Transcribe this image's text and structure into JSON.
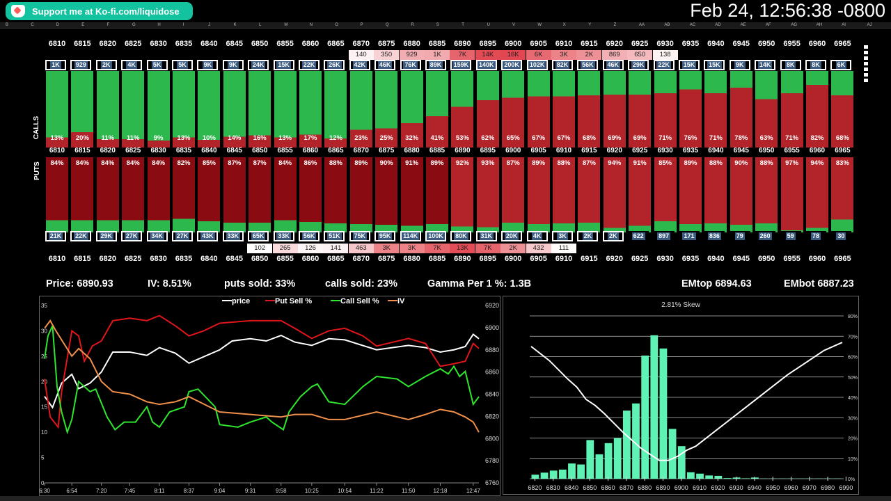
{
  "header": {
    "kofi_label": "Support me at Ko-fi.com/liquidose",
    "clock": "Feb 24, 12:56:38 -0800",
    "columns": [
      "B",
      "C",
      "D",
      "E",
      "F",
      "G",
      "H",
      "I",
      "J",
      "K",
      "L",
      "M",
      "N",
      "O",
      "P",
      "Q",
      "R",
      "S",
      "T",
      "U",
      "V",
      "W",
      "X",
      "Y",
      "Z",
      "AA",
      "AB",
      "AC",
      "AD",
      "AE",
      "AF",
      "AG",
      "AH",
      "AI",
      "AJ"
    ]
  },
  "colors": {
    "green": "#2db84d",
    "red": "#b3232a",
    "darkred": "#8a0c12",
    "oi_fill": "#3a5a80",
    "kofi": "#13c3a0",
    "hist": "#5ef2b4"
  },
  "board": {
    "calls_label": "CALLS",
    "puts_label": "PUTS",
    "strikes": [
      "6810",
      "6815",
      "6820",
      "6825",
      "6830",
      "6835",
      "6840",
      "6845",
      "6850",
      "6855",
      "6860",
      "6865",
      "6870",
      "6875",
      "6880",
      "6885",
      "6890",
      "6895",
      "6900",
      "6905",
      "6910",
      "6915",
      "6920",
      "6925",
      "6930",
      "6935",
      "6940",
      "6945",
      "6950",
      "6955",
      "6960",
      "6965"
    ],
    "call_volume": [
      "",
      "",
      "",
      "",
      "",
      "",
      "",
      "",
      "",
      "",
      "",
      "",
      "140",
      "350",
      "929",
      "1K",
      "7K",
      "14K",
      "16K",
      "6K",
      "3K",
      "2K",
      "869",
      "650",
      "138",
      "",
      "",
      "",
      "",
      "",
      "",
      ""
    ],
    "call_oi": [
      "1K",
      "929",
      "2K",
      "4K",
      "5K",
      "5K",
      "9K",
      "9K",
      "24K",
      "15K",
      "22K",
      "26K",
      "42K",
      "46K",
      "76K",
      "89K",
      "159K",
      "140K",
      "200K",
      "102K",
      "82K",
      "56K",
      "46K",
      "29K",
      "22K",
      "15K",
      "15K",
      "9K",
      "14K",
      "8K",
      "8K",
      "6K"
    ],
    "call_sold_pct": [
      13,
      20,
      11,
      11,
      9,
      13,
      10,
      14,
      16,
      13,
      17,
      12,
      23,
      25,
      32,
      41,
      53,
      62,
      65,
      67,
      67,
      68,
      69,
      69,
      71,
      76,
      71,
      78,
      63,
      71,
      82,
      68
    ],
    "put_sold_pct": [
      84,
      84,
      84,
      84,
      84,
      82,
      85,
      87,
      87,
      84,
      86,
      88,
      89,
      90,
      91,
      89,
      92,
      93,
      87,
      89,
      88,
      87,
      94,
      91,
      85,
      89,
      88,
      90,
      88,
      97,
      94,
      83
    ],
    "put_oi": [
      "21K",
      "22K",
      "29K",
      "27K",
      "34K",
      "27K",
      "43K",
      "33K",
      "65K",
      "33K",
      "56K",
      "51K",
      "75K",
      "95K",
      "114K",
      "100K",
      "80K",
      "31K",
      "20K",
      "4K",
      "3K",
      "2K",
      "2K",
      "622",
      "897",
      "171",
      "836",
      "79",
      "260",
      "59",
      "78",
      "30"
    ],
    "put_volume": [
      "",
      "",
      "",
      "",
      "",
      "",
      "",
      "",
      "102",
      "265",
      "126",
      "141",
      "463",
      "3K",
      "3K",
      "7K",
      "13K",
      "7K",
      "2K",
      "432",
      "111",
      "",
      "",
      "",
      "",
      "",
      "",
      "",
      "",
      "",
      "",
      ""
    ]
  },
  "stats": {
    "price": "Price: 6890.93",
    "iv": "IV: 8.51%",
    "puts_sold": "puts sold: 33%",
    "calls_sold": "calls sold: 23%",
    "gamma": "Gamma Per 1 %: 1.3B",
    "emtop": "EMtop 6894.63",
    "embot": "EMbot 6887.23"
  },
  "chart_data": [
    {
      "type": "line",
      "title": "",
      "legend_placement": "top",
      "x_ticks": [
        "6:30",
        "6:54",
        "7:20",
        "7:45",
        "8:11",
        "8:37",
        "9:04",
        "9:31",
        "9:58",
        "10:25",
        "10:54",
        "11:22",
        "11:50",
        "12:18",
        "12:47"
      ],
      "y_left": {
        "range": [
          0,
          35
        ],
        "ticks": [
          0,
          5,
          10,
          15,
          20,
          25,
          30,
          35
        ]
      },
      "y_right": {
        "range": [
          6760,
          6920
        ],
        "ticks": [
          6760,
          6780,
          6800,
          6820,
          6840,
          6860,
          6880,
          6900,
          6920
        ]
      },
      "series": [
        {
          "name": "price",
          "color": "#ffffff",
          "axis": "right",
          "points": [
            [
              "6:30",
              6838
            ],
            [
              "6:37",
              6828
            ],
            [
              "6:45",
              6850
            ],
            [
              "6:54",
              6858
            ],
            [
              "7:00",
              6845
            ],
            [
              "7:10",
              6850
            ],
            [
              "7:20",
              6860
            ],
            [
              "7:30",
              6878
            ],
            [
              "7:45",
              6878
            ],
            [
              "8:00",
              6875
            ],
            [
              "8:11",
              6882
            ],
            [
              "8:25",
              6877
            ],
            [
              "8:37",
              6868
            ],
            [
              "9:04",
              6880
            ],
            [
              "9:15",
              6888
            ],
            [
              "9:31",
              6890
            ],
            [
              "9:45",
              6888
            ],
            [
              "9:58",
              6893
            ],
            [
              "10:10",
              6887
            ],
            [
              "10:25",
              6884
            ],
            [
              "10:40",
              6890
            ],
            [
              "10:54",
              6889
            ],
            [
              "11:22",
              6880
            ],
            [
              "11:50",
              6884
            ],
            [
              "12:05",
              6882
            ],
            [
              "12:18",
              6878
            ],
            [
              "12:30",
              6880
            ],
            [
              "12:40",
              6883
            ],
            [
              "12:47",
              6894
            ],
            [
              "12:52",
              6890
            ]
          ]
        },
        {
          "name": "Put Sell %",
          "color": "#e0161b",
          "axis": "left",
          "points": [
            [
              "6:30",
              20.5
            ],
            [
              "6:35",
              13
            ],
            [
              "6:42",
              11
            ],
            [
              "6:45",
              18
            ],
            [
              "6:54",
              30
            ],
            [
              "7:00",
              29
            ],
            [
              "7:05",
              24
            ],
            [
              "7:12",
              27
            ],
            [
              "7:20",
              28
            ],
            [
              "7:30",
              32
            ],
            [
              "7:45",
              32.5
            ],
            [
              "8:00",
              32
            ],
            [
              "8:11",
              33
            ],
            [
              "8:25",
              31
            ],
            [
              "8:37",
              29
            ],
            [
              "8:50",
              30
            ],
            [
              "9:04",
              31.5
            ],
            [
              "9:31",
              32
            ],
            [
              "9:58",
              32
            ],
            [
              "10:10",
              30.5
            ],
            [
              "10:25",
              28.5
            ],
            [
              "10:40",
              30
            ],
            [
              "10:54",
              30.5
            ],
            [
              "11:10",
              29
            ],
            [
              "11:22",
              27
            ],
            [
              "11:50",
              28.5
            ],
            [
              "12:05",
              27.5
            ],
            [
              "12:18",
              23
            ],
            [
              "12:30",
              23.5
            ],
            [
              "12:40",
              24
            ],
            [
              "12:47",
              27.5
            ],
            [
              "12:52",
              26.5
            ]
          ]
        },
        {
          "name": "Call Sell %",
          "color": "#2ee62e",
          "axis": "left",
          "points": [
            [
              "6:30",
              24.5
            ],
            [
              "6:33",
              29
            ],
            [
              "6:37",
              31
            ],
            [
              "6:41",
              19
            ],
            [
              "6:45",
              14
            ],
            [
              "6:50",
              10
            ],
            [
              "6:54",
              12.5
            ],
            [
              "7:00",
              20
            ],
            [
              "7:10",
              18
            ],
            [
              "7:15",
              18.5
            ],
            [
              "7:25",
              13
            ],
            [
              "7:32",
              10.5
            ],
            [
              "7:40",
              12
            ],
            [
              "7:50",
              12
            ],
            [
              "8:00",
              15
            ],
            [
              "8:05",
              12
            ],
            [
              "8:11",
              11
            ],
            [
              "8:20",
              14
            ],
            [
              "8:33",
              15
            ],
            [
              "8:37",
              18
            ],
            [
              "8:45",
              18.5
            ],
            [
              "9:00",
              15
            ],
            [
              "9:04",
              11.5
            ],
            [
              "9:20",
              11
            ],
            [
              "9:31",
              12
            ],
            [
              "9:45",
              13
            ],
            [
              "9:50",
              12
            ],
            [
              "10:00",
              10.5
            ],
            [
              "10:05",
              14
            ],
            [
              "10:15",
              17
            ],
            [
              "10:25",
              19
            ],
            [
              "10:30",
              19.5
            ],
            [
              "10:40",
              16
            ],
            [
              "10:54",
              15.5
            ],
            [
              "11:10",
              19
            ],
            [
              "11:22",
              21
            ],
            [
              "11:40",
              20.5
            ],
            [
              "11:50",
              19
            ],
            [
              "12:05",
              21
            ],
            [
              "12:18",
              22.5
            ],
            [
              "12:25",
              21.5
            ],
            [
              "12:30",
              23
            ],
            [
              "12:35",
              21
            ],
            [
              "12:40",
              22
            ],
            [
              "12:47",
              15.5
            ],
            [
              "12:52",
              17
            ]
          ]
        },
        {
          "name": "IV",
          "color": "#f0904a",
          "axis": "left",
          "points": [
            [
              "6:30",
              30.5
            ],
            [
              "6:35",
              32
            ],
            [
              "6:40",
              30
            ],
            [
              "6:54",
              25
            ],
            [
              "7:00",
              26.5
            ],
            [
              "7:10",
              24.5
            ],
            [
              "7:20",
              20
            ],
            [
              "7:30",
              18
            ],
            [
              "7:45",
              17.5
            ],
            [
              "8:00",
              16
            ],
            [
              "8:11",
              15.5
            ],
            [
              "8:25",
              16
            ],
            [
              "8:37",
              17
            ],
            [
              "9:04",
              14
            ],
            [
              "9:31",
              13.5
            ],
            [
              "9:58",
              13
            ],
            [
              "10:10",
              13.5
            ],
            [
              "10:25",
              13.5
            ],
            [
              "10:40",
              12.5
            ],
            [
              "10:54",
              12.5
            ],
            [
              "11:22",
              14
            ],
            [
              "11:50",
              12.5
            ],
            [
              "12:05",
              13.5
            ],
            [
              "12:18",
              14.5
            ],
            [
              "12:30",
              14
            ],
            [
              "12:40",
              13
            ],
            [
              "12:47",
              12
            ],
            [
              "12:52",
              10
            ]
          ]
        }
      ]
    },
    {
      "type": "bar",
      "title": "2.81% Skew",
      "y_range": [
        0,
        80
      ],
      "y_ticks": [
        "0%",
        "10%",
        "20%",
        "30%",
        "40%",
        "50%",
        "60%",
        "70%",
        "80%"
      ],
      "x_ticks": [
        "6820",
        "6830",
        "6840",
        "6850",
        "6860",
        "6870",
        "6880",
        "6890",
        "6900",
        "6910",
        "6920",
        "6930",
        "6940",
        "6950",
        "6960",
        "6970",
        "6980",
        "6990"
      ],
      "bars": {
        "x": [
          6820,
          6825,
          6830,
          6835,
          6840,
          6845,
          6850,
          6855,
          6860,
          6865,
          6870,
          6875,
          6880,
          6885,
          6890,
          6895,
          6900,
          6905,
          6910,
          6915,
          6920,
          6925,
          6930,
          6935,
          6940,
          6945,
          6950,
          6955,
          6960,
          6965,
          6970,
          6975,
          6980,
          6985
        ],
        "values": [
          2,
          3,
          4,
          4.5,
          7.5,
          7,
          19,
          12,
          17.5,
          20,
          33.5,
          37,
          60.5,
          70.5,
          64,
          24.5,
          16,
          3.2,
          2.5,
          1.6,
          1.4,
          0.3,
          0.6,
          0.2,
          0.6,
          0.1,
          0.1,
          0.1,
          0.1,
          0.1,
          0.1,
          0.1,
          0.1,
          0.1
        ]
      },
      "line": {
        "x": [
          6820,
          6830,
          6840,
          6845,
          6850,
          6855,
          6860,
          6870,
          6880,
          6885,
          6890,
          6895,
          6900,
          6905,
          6910,
          6920,
          6930,
          6940,
          6950,
          6960,
          6970,
          6980,
          6990
        ],
        "values": [
          65,
          58,
          49,
          45,
          39,
          36,
          32,
          23,
          15,
          12,
          9,
          9,
          11,
          14,
          16,
          23,
          30,
          37,
          44,
          51,
          57,
          63,
          67
        ]
      }
    }
  ]
}
